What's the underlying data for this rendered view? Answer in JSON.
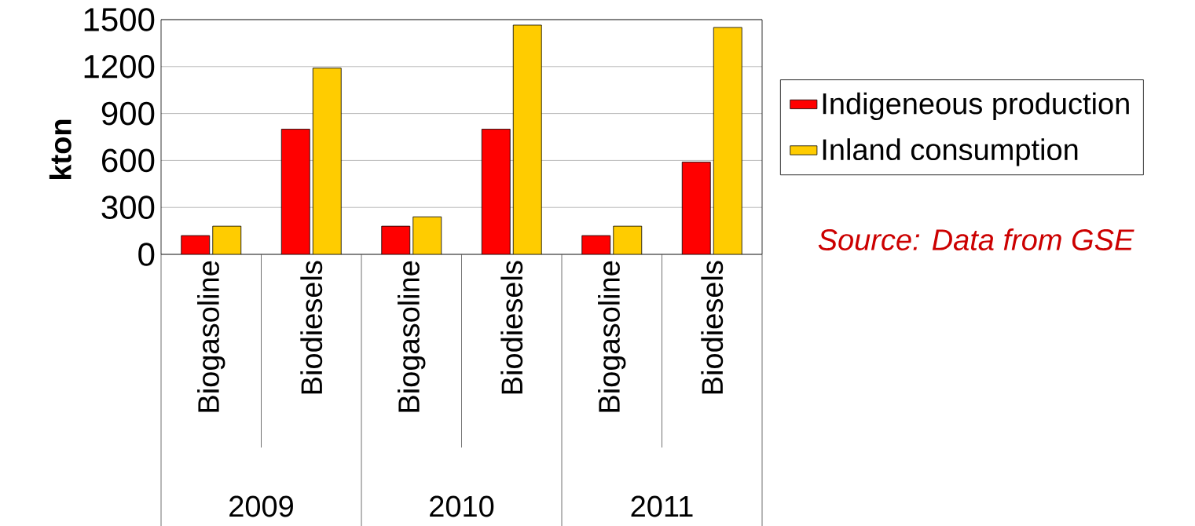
{
  "chart_data": {
    "type": "bar",
    "ylabel": "kton",
    "categories": [
      "Biogasoline",
      "Biodiesels",
      "Biogasoline",
      "Biodiesels",
      "Biogasoline",
      "Biodiesels"
    ],
    "series": [
      {
        "name": "Indigeneous production",
        "color": "#ff0000",
        "values": [
          120,
          800,
          180,
          800,
          120,
          590
        ]
      },
      {
        "name": "Inland consumption",
        "color": "#ffcc00",
        "values": [
          180,
          1190,
          240,
          1465,
          180,
          1450
        ]
      }
    ],
    "ylim": [
      0,
      1500
    ],
    "yticks": [
      0,
      300,
      600,
      900,
      1200,
      1500
    ],
    "grid": "y",
    "legend": "right",
    "annotations": [
      "2009",
      "2010",
      "2011",
      "Source: Data from GSE"
    ]
  }
}
